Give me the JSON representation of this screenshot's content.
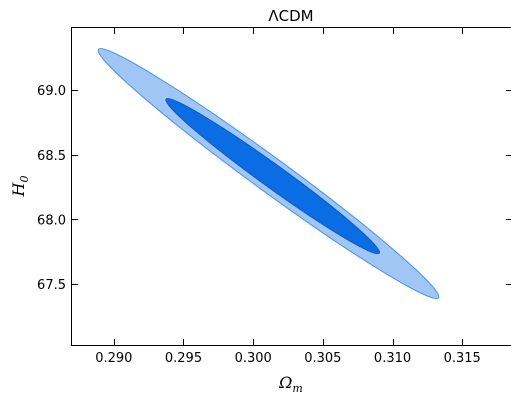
{
  "chart_data": {
    "type": "scatter",
    "title": "ΛCDM",
    "xlabel": "Ωm",
    "ylabel": "H0",
    "xlim": [
      0.287,
      0.3185
    ],
    "ylim": [
      67.03,
      69.48
    ],
    "x_ticks": [
      0.29,
      0.295,
      0.3,
      0.305,
      0.31,
      0.315
    ],
    "x_tick_labels": [
      "0.290",
      "0.295",
      "0.300",
      "0.305",
      "0.310",
      "0.315"
    ],
    "y_ticks": [
      67.5,
      68.0,
      68.5,
      69.0
    ],
    "y_tick_labels": [
      "67.5",
      "68.0",
      "68.5",
      "69.0"
    ],
    "grid": false,
    "series": [
      {
        "level": "2-sigma",
        "color": "#a0c6f5",
        "edge_color": "#4a94e8",
        "center": [
          0.3011,
          68.355
        ],
        "x_extent": [
          0.2889,
          0.3133
        ],
        "y_extent": [
          67.39,
          69.31
        ]
      },
      {
        "level": "1-sigma",
        "color": "#0a6de3",
        "edge_color": "#0a5ac0",
        "center": [
          0.3014,
          68.335
        ],
        "x_extent": [
          0.2938,
          0.3091
        ],
        "y_extent": [
          67.74,
          68.93
        ]
      }
    ]
  }
}
